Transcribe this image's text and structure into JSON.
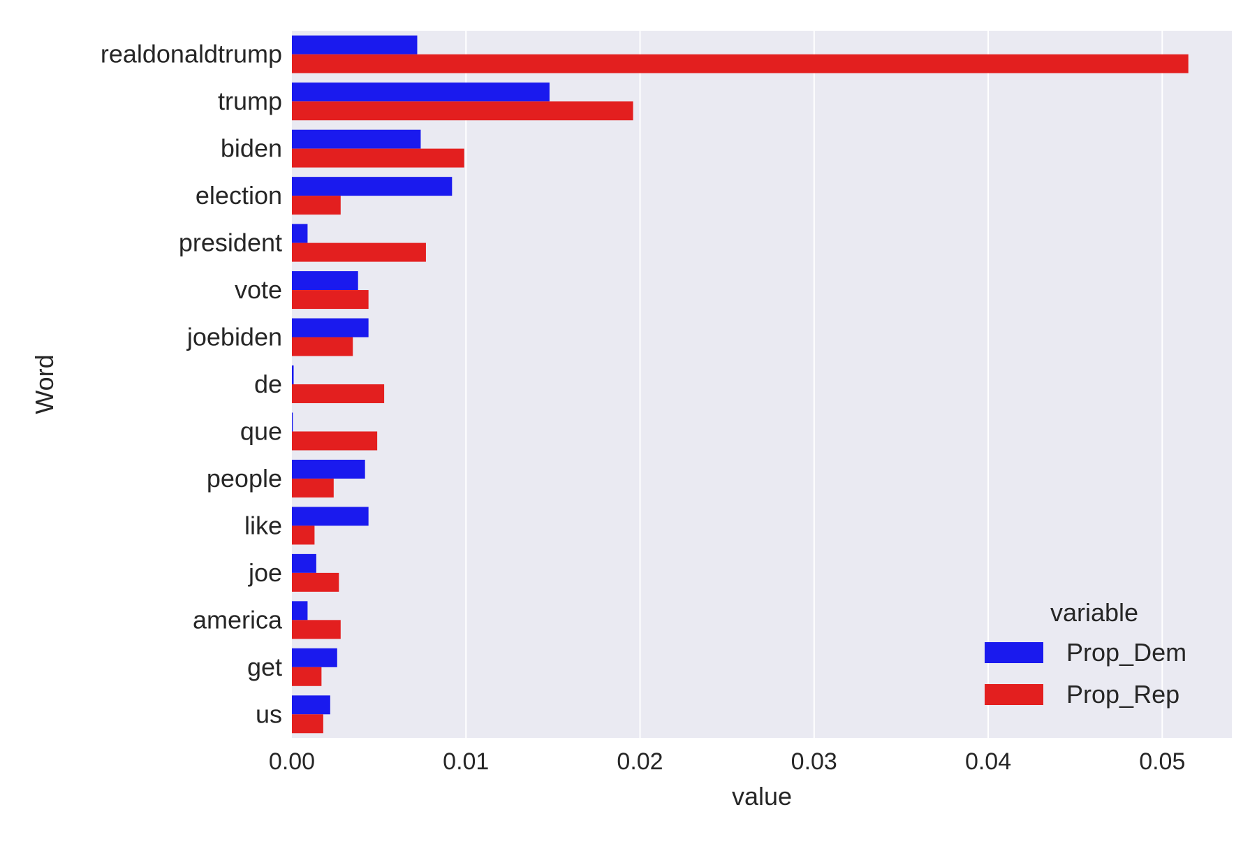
{
  "chart_data": {
    "type": "bar",
    "orientation": "horizontal",
    "title": "",
    "xlabel": "value",
    "ylabel": "Word",
    "xlim": [
      0,
      0.054
    ],
    "x_ticks": [
      0.0,
      0.01,
      0.02,
      0.03,
      0.04,
      0.05
    ],
    "x_tick_labels": [
      "0.00",
      "0.01",
      "0.02",
      "0.03",
      "0.04",
      "0.05"
    ],
    "grid": "vertical",
    "categories": [
      "realdonaldtrump",
      "trump",
      "biden",
      "election",
      "president",
      "vote",
      "joebiden",
      "de",
      "que",
      "people",
      "like",
      "joe",
      "america",
      "get",
      "us"
    ],
    "series": [
      {
        "name": "Prop_Dem",
        "color": "#1a1aee",
        "values": [
          0.0072,
          0.0148,
          0.0074,
          0.0092,
          0.0009,
          0.0038,
          0.0044,
          0.0001,
          5e-05,
          0.0042,
          0.0044,
          0.0014,
          0.0009,
          0.0026,
          0.0022
        ]
      },
      {
        "name": "Prop_Rep",
        "color": "#e31f1f",
        "values": [
          0.0515,
          0.0196,
          0.0099,
          0.0028,
          0.0077,
          0.0044,
          0.0035,
          0.0053,
          0.0049,
          0.0024,
          0.0013,
          0.0027,
          0.0028,
          0.0017,
          0.0018
        ]
      }
    ],
    "legend": {
      "title": "variable",
      "position": "lower-right"
    },
    "background_color": "#eaeaf2"
  }
}
